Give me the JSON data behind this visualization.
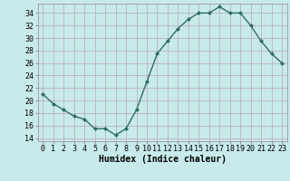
{
  "x": [
    0,
    1,
    2,
    3,
    4,
    5,
    6,
    7,
    8,
    9,
    10,
    11,
    12,
    13,
    14,
    15,
    16,
    17,
    18,
    19,
    20,
    21,
    22,
    23
  ],
  "y": [
    21,
    19.5,
    18.5,
    17.5,
    17,
    15.5,
    15.5,
    14.5,
    15.5,
    18.5,
    23,
    27.5,
    29.5,
    31.5,
    33,
    34,
    34,
    35,
    34,
    34,
    32,
    29.5,
    27.5,
    26
  ],
  "line_color": "#2e6e5e",
  "marker": "D",
  "marker_size": 2.0,
  "bg_color": "#c8eaea",
  "grid_color_major": "#b8a8a8",
  "grid_color_minor": "#b8a8a8",
  "xlabel": "Humidex (Indice chaleur)",
  "xlim": [
    -0.5,
    23.5
  ],
  "ylim": [
    13.5,
    35.5
  ],
  "yticks": [
    14,
    16,
    18,
    20,
    22,
    24,
    26,
    28,
    30,
    32,
    34
  ],
  "xtick_labels": [
    "0",
    "1",
    "2",
    "3",
    "4",
    "5",
    "6",
    "7",
    "8",
    "9",
    "10",
    "11",
    "12",
    "13",
    "14",
    "15",
    "16",
    "17",
    "18",
    "19",
    "20",
    "21",
    "22",
    "23"
  ],
  "xlabel_fontsize": 7.0,
  "tick_fontsize": 6.0,
  "line_width": 1.0
}
